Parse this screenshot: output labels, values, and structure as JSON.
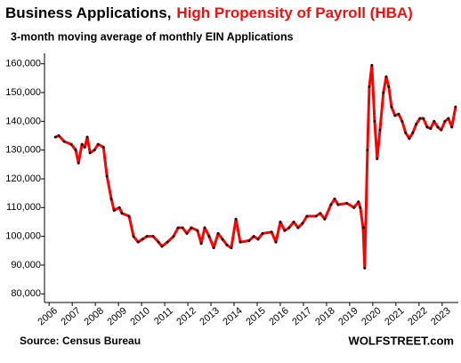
{
  "chart_data": {
    "type": "line",
    "title": "Business Applications,",
    "title_highlight": "High Propensity of Payroll (HBA)",
    "title_highlight_color": "#ee1111",
    "subtitle": "3-month moving average of monthly EIN Applications",
    "source": "Source: Census Bureau",
    "watermark": "WOLFSTREET.com",
    "xlim": [
      2005.8,
      2023.7
    ],
    "xticks": [
      2006,
      2007,
      2008,
      2009,
      2010,
      2011,
      2012,
      2013,
      2014,
      2015,
      2016,
      2017,
      2018,
      2019,
      2020,
      2021,
      2022,
      2023
    ],
    "ylim": [
      77000,
      163000
    ],
    "yticks": [
      {
        "value": 80000,
        "label": "80,000"
      },
      {
        "value": 90000,
        "label": "90,000"
      },
      {
        "value": 100000,
        "label": "100,000"
      },
      {
        "value": 110000,
        "label": "110,000"
      },
      {
        "value": 120000,
        "label": "120,000"
      },
      {
        "value": 130000,
        "label": "130,000"
      },
      {
        "value": 140000,
        "label": "140,000"
      },
      {
        "value": 150000,
        "label": "150,000"
      },
      {
        "value": 160000,
        "label": "160,000"
      }
    ],
    "grid": false,
    "x": [
      2006.27,
      2006.42,
      2006.65,
      2006.96,
      2007.15,
      2007.27,
      2007.42,
      2007.54,
      2007.65,
      2007.77,
      2007.96,
      2008.12,
      2008.35,
      2008.5,
      2008.69,
      2008.81,
      2009.04,
      2009.15,
      2009.46,
      2009.65,
      2009.85,
      2010.04,
      2010.23,
      2010.5,
      2010.73,
      2010.88,
      2011.12,
      2011.38,
      2011.58,
      2011.77,
      2011.96,
      2012.15,
      2012.42,
      2012.58,
      2012.73,
      2012.92,
      2013.12,
      2013.31,
      2013.5,
      2013.69,
      2013.88,
      2014.08,
      2014.27,
      2014.65,
      2014.85,
      2015.04,
      2015.23,
      2015.62,
      2015.81,
      2016.0,
      2016.19,
      2016.38,
      2016.58,
      2016.77,
      2016.96,
      2017.15,
      2017.54,
      2017.73,
      2017.92,
      2018.19,
      2018.35,
      2018.5,
      2018.88,
      2019.19,
      2019.38,
      2019.46,
      2019.58,
      2019.65,
      2019.77,
      2019.85,
      2019.96,
      2020.08,
      2020.19,
      2020.31,
      2020.46,
      2020.58,
      2020.69,
      2020.81,
      2020.96,
      2021.12,
      2021.27,
      2021.42,
      2021.58,
      2021.73,
      2021.88,
      2022.04,
      2022.19,
      2022.35,
      2022.5,
      2022.65,
      2022.81,
      2022.96,
      2023.12,
      2023.27,
      2023.42,
      2023.58
    ],
    "series": [
      {
        "color": "#ff0000",
        "marker_color": "#111111",
        "values": [
          134500,
          135000,
          133000,
          132000,
          130000,
          125500,
          132000,
          131000,
          134500,
          129000,
          130000,
          132000,
          131000,
          121000,
          113000,
          109000,
          110000,
          108000,
          107000,
          100000,
          98000,
          99000,
          100000,
          100000,
          98000,
          96500,
          98000,
          100000,
          103000,
          103000,
          101000,
          103000,
          102000,
          97500,
          103000,
          100000,
          96000,
          101000,
          99000,
          97000,
          96000,
          106000,
          98000,
          98500,
          100000,
          99000,
          101000,
          101500,
          98000,
          105000,
          102000,
          103000,
          105000,
          103000,
          104500,
          107000,
          107000,
          108000,
          106000,
          111000,
          113000,
          111000,
          111500,
          110000,
          112000,
          110000,
          103000,
          89000,
          130000,
          152000,
          159500,
          140000,
          127000,
          137000,
          150000,
          155500,
          152000,
          145000,
          142000,
          142500,
          140000,
          136000,
          134000,
          136000,
          139000,
          141000,
          141000,
          138000,
          137500,
          140000,
          138000,
          137000,
          140000,
          141000,
          138000,
          145000
        ]
      }
    ]
  }
}
